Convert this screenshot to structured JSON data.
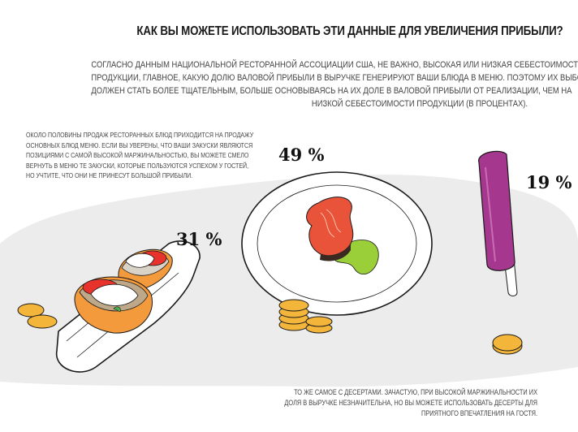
{
  "title": "КАК ВЫ МОЖЕТЕ ИСПОЛЬЗОВАТЬ ЭТИ ДАННЫЕ ДЛЯ УВЕЛИЧЕНИЯ ПРИБЫЛИ?",
  "intro_lines": [
    "СОГЛАСНО ДАННЫМ НАЦИОНАЛЬНОЙ РЕСТОРАННОЙ АССОЦИАЦИИ США, НЕ ВАЖНО, ВЫСОКАЯ ИЛИ НИЗКАЯ СЕБЕСТОИМОСТЬ",
    "ПРОДУКЦИИ, ГЛАВНОЕ, КАКУЮ ДОЛЮ ВАЛОВОЙ ПРИБЫЛИ В ВЫРУЧКЕ ГЕНЕРИРУЮТ ВАШИ БЛЮДА В МЕНЮ. ПОЭТОМУ ИХ ВЫБОР",
    "ДОЛЖЕН СТАТЬ БОЛЕЕ ТЩАТЕЛЬНЫМ, БОЛЬШЕ ОСНОВЫВАЯСЬ НА ИХ ДОЛЕ В ВАЛОВОЙ ПРИБЫЛИ ОТ РЕАЛИЗАЦИИ, ЧЕМ НА",
    "НИЗКОЙ СЕБЕСТОИМОСТИ ПРОДУКЦИИ (В ПРОЦЕНТАХ)."
  ],
  "left_note_lines": [
    "ОКОЛО ПОЛОВИНЫ ПРОДАЖ РЕСТОРАННЫХ БЛЮД ПРИХОДИТСЯ НА ПРОДАЖУ",
    "ОСНОВНЫХ БЛЮД МЕНЮ. ЕСЛИ ВЫ УВЕРЕНЫ, ЧТО ВАШИ ЗАКУСКИ ЯВЛЯЮТСЯ",
    "ПОЗИЦИЯМИ С САМОЙ ВЫСОКОЙ МАРЖИНАЛЬНОСТЬЮ, ВЫ МОЖЕТЕ СМЕЛО",
    "ВЕРНУТЬ В МЕНЮ ТЕ ЗАКУСКИ, КОТОРЫЕ ПОЛЬЗУЮТСЯ УСПЕХОМ У ГОСТЕЙ,",
    "НО УЧТИТЕ, ЧТО ОНИ НЕ ПРИНЕСУТ БОЛЬШОЙ ПРИБЫЛИ."
  ],
  "bottom_note_lines": [
    "ТО ЖЕ САМОЕ С ДЕСЕРТАМИ. ЗАЧАСТУЮ, ПРИ ВЫСОКОЙ МАРЖИНАЛЬНОСТИ ИХ",
    "ДОЛЯ В ВЫРУЧКЕ НЕЗНАЧИТЕЛЬНА, НО ВЫ МОЖЕТЕ ИСПОЛЬЗОВАТЬ ДЕСЕРТЫ ДЛЯ",
    "ПРИЯТНОГО ВПЕЧАТЛЕНИЯ НА ГОСТЯ."
  ],
  "percentages": {
    "snacks": "31 %",
    "mains": "49 %",
    "desserts": "19 %"
  },
  "colors": {
    "background_blob": "#ececec",
    "plate": "#ffffff",
    "salmon": "#e8533a",
    "sauce": "#9bcf3a",
    "popsicle": "#a5378e",
    "coin": "#f4b63a",
    "tomato": "#e8332d",
    "bread_crust": "#f39a3c"
  },
  "illustrations": [
    "snack-tray-illustration",
    "salmon-plate-illustration",
    "popsicle-illustration",
    "coin-stack-icon"
  ]
}
